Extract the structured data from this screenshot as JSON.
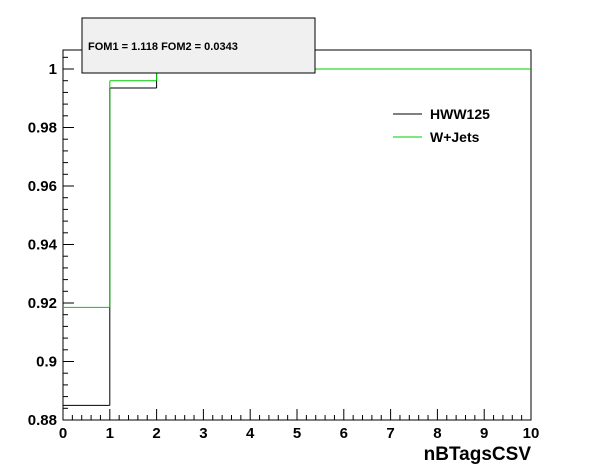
{
  "chart_data": {
    "type": "line",
    "xlabel": "nBTagsCSV",
    "ylabel": "",
    "xlim": [
      0,
      10
    ],
    "ylim": [
      0.88,
      1.0065
    ],
    "x_ticks": [
      "0",
      "1",
      "2",
      "3",
      "4",
      "5",
      "6",
      "7",
      "8",
      "9",
      "10"
    ],
    "y_ticks": [
      "0.88",
      "0.9",
      "0.92",
      "0.94",
      "0.96",
      "0.98",
      "1"
    ],
    "bin_edges": [
      0,
      1,
      2,
      3,
      4,
      5,
      6,
      7,
      8,
      9,
      10
    ],
    "series": [
      {
        "name": "HWW125",
        "color": "#000000",
        "values": [
          0.885,
          0.9935,
          1.0,
          1.0,
          1.0,
          1.0,
          1.0,
          1.0,
          1.0,
          1.0
        ]
      },
      {
        "name": "W+Jets",
        "color": "#00cc00",
        "values": [
          0.9185,
          0.996,
          1.0,
          1.0,
          1.0,
          1.0,
          1.0,
          1.0,
          1.0,
          1.0
        ]
      }
    ],
    "legend_position": "top-right",
    "stat_box": "FOM1 = 1.118 FOM2 = 0.0343",
    "grid": false
  }
}
